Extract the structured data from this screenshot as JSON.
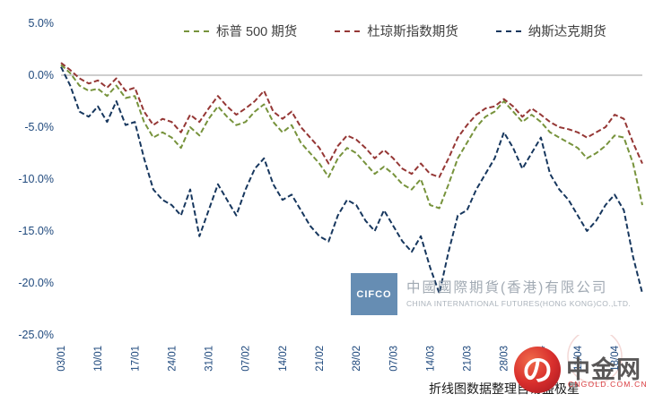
{
  "chart_data": {
    "type": "line",
    "title": "",
    "xlabel": "",
    "ylabel": "",
    "ylim": [
      -25,
      5
    ],
    "grid": "zero-line-only",
    "legend_position": "top",
    "axis_color": "#1F497D",
    "zero_line_color": "#9e9e9e",
    "yticks": [
      5,
      0,
      -5,
      -10,
      -15,
      -20,
      -25
    ],
    "ytick_labels": [
      "5.0%",
      "0.0%",
      "-5.0%",
      "-10.0%",
      "-15.0%",
      "-20.0%",
      "-25.0%"
    ],
    "x_tick_labels": [
      "03/01",
      "10/01",
      "17/01",
      "24/01",
      "31/01",
      "07/02",
      "14/02",
      "21/02",
      "28/02",
      "07/03",
      "14/03",
      "21/03",
      "28/03",
      "04/04",
      "11/04",
      "18/04"
    ],
    "x_tick_positions": [
      0,
      4,
      8,
      12,
      16,
      20,
      24,
      28,
      32,
      36,
      40,
      44,
      48,
      52,
      56,
      60
    ],
    "n_points": 64,
    "series": [
      {
        "name": "标普 500 期货",
        "color": "#77933C",
        "values": [
          1.0,
          0.2,
          -1.0,
          -1.5,
          -1.3,
          -2.0,
          -1.0,
          -2.2,
          -2.0,
          -4.5,
          -6.0,
          -5.5,
          -6.0,
          -7.0,
          -5.0,
          -5.8,
          -4.2,
          -3.0,
          -4.0,
          -4.8,
          -4.5,
          -3.5,
          -2.8,
          -4.5,
          -5.5,
          -4.8,
          -6.5,
          -7.5,
          -8.5,
          -9.8,
          -8.0,
          -7.0,
          -7.5,
          -8.5,
          -9.5,
          -8.8,
          -9.5,
          -10.5,
          -11.0,
          -10.0,
          -12.5,
          -12.8,
          -10.5,
          -8.0,
          -6.5,
          -5.0,
          -4.0,
          -3.5,
          -2.5,
          -3.5,
          -4.5,
          -3.8,
          -4.5,
          -5.5,
          -6.0,
          -6.5,
          -7.0,
          -8.0,
          -7.5,
          -6.8,
          -5.8,
          -6.0,
          -8.5,
          -12.5
        ]
      },
      {
        "name": "杜琼斯指数期货",
        "color": "#953735",
        "values": [
          1.2,
          0.5,
          -0.3,
          -0.8,
          -0.5,
          -1.2,
          -0.3,
          -1.5,
          -1.2,
          -3.5,
          -4.8,
          -4.2,
          -4.5,
          -5.5,
          -3.8,
          -4.5,
          -3.2,
          -2.0,
          -3.0,
          -3.8,
          -3.2,
          -2.5,
          -1.5,
          -3.5,
          -4.2,
          -3.5,
          -5.0,
          -6.0,
          -7.0,
          -8.5,
          -6.8,
          -5.8,
          -6.2,
          -7.0,
          -8.0,
          -7.2,
          -8.0,
          -9.0,
          -9.5,
          -8.5,
          -9.5,
          -9.8,
          -8.0,
          -6.0,
          -4.8,
          -3.8,
          -3.2,
          -3.0,
          -2.3,
          -3.0,
          -4.0,
          -3.2,
          -3.8,
          -4.5,
          -5.0,
          -5.2,
          -5.5,
          -6.0,
          -5.5,
          -5.0,
          -3.8,
          -4.2,
          -6.5,
          -8.5
        ]
      },
      {
        "name": "纳斯达克期货",
        "color": "#17375E",
        "values": [
          0.8,
          -1.0,
          -3.5,
          -4.0,
          -3.0,
          -4.5,
          -2.5,
          -4.8,
          -4.5,
          -8.0,
          -11.0,
          -12.0,
          -12.5,
          -13.5,
          -11.0,
          -15.5,
          -13.0,
          -10.5,
          -12.0,
          -13.5,
          -11.0,
          -9.0,
          -8.0,
          -10.5,
          -12.0,
          -11.5,
          -13.0,
          -14.5,
          -15.5,
          -16.0,
          -13.5,
          -12.0,
          -12.5,
          -14.0,
          -15.0,
          -13.0,
          -14.5,
          -16.0,
          -17.0,
          -15.5,
          -18.5,
          -21.0,
          -17.0,
          -13.5,
          -13.0,
          -11.0,
          -9.5,
          -8.0,
          -5.5,
          -7.0,
          -9.0,
          -7.5,
          -6.0,
          -9.5,
          -11.0,
          -12.0,
          -13.5,
          -15.0,
          -14.0,
          -12.5,
          -11.5,
          -13.0,
          -17.5,
          -21.0
        ]
      }
    ]
  },
  "watermark": {
    "box_label": "CIFCO",
    "company_cn": "中國國際期貨(香港)有限公司",
    "company_en": "CHINA INTERNATIONAL FUTURES(HONG KONG)CO.,LTD."
  },
  "footer": {
    "note": "折线图数据整理自易盛极星"
  },
  "logo": {
    "title": "中金网",
    "subtitle": "CNGOLD.COM.CN"
  }
}
